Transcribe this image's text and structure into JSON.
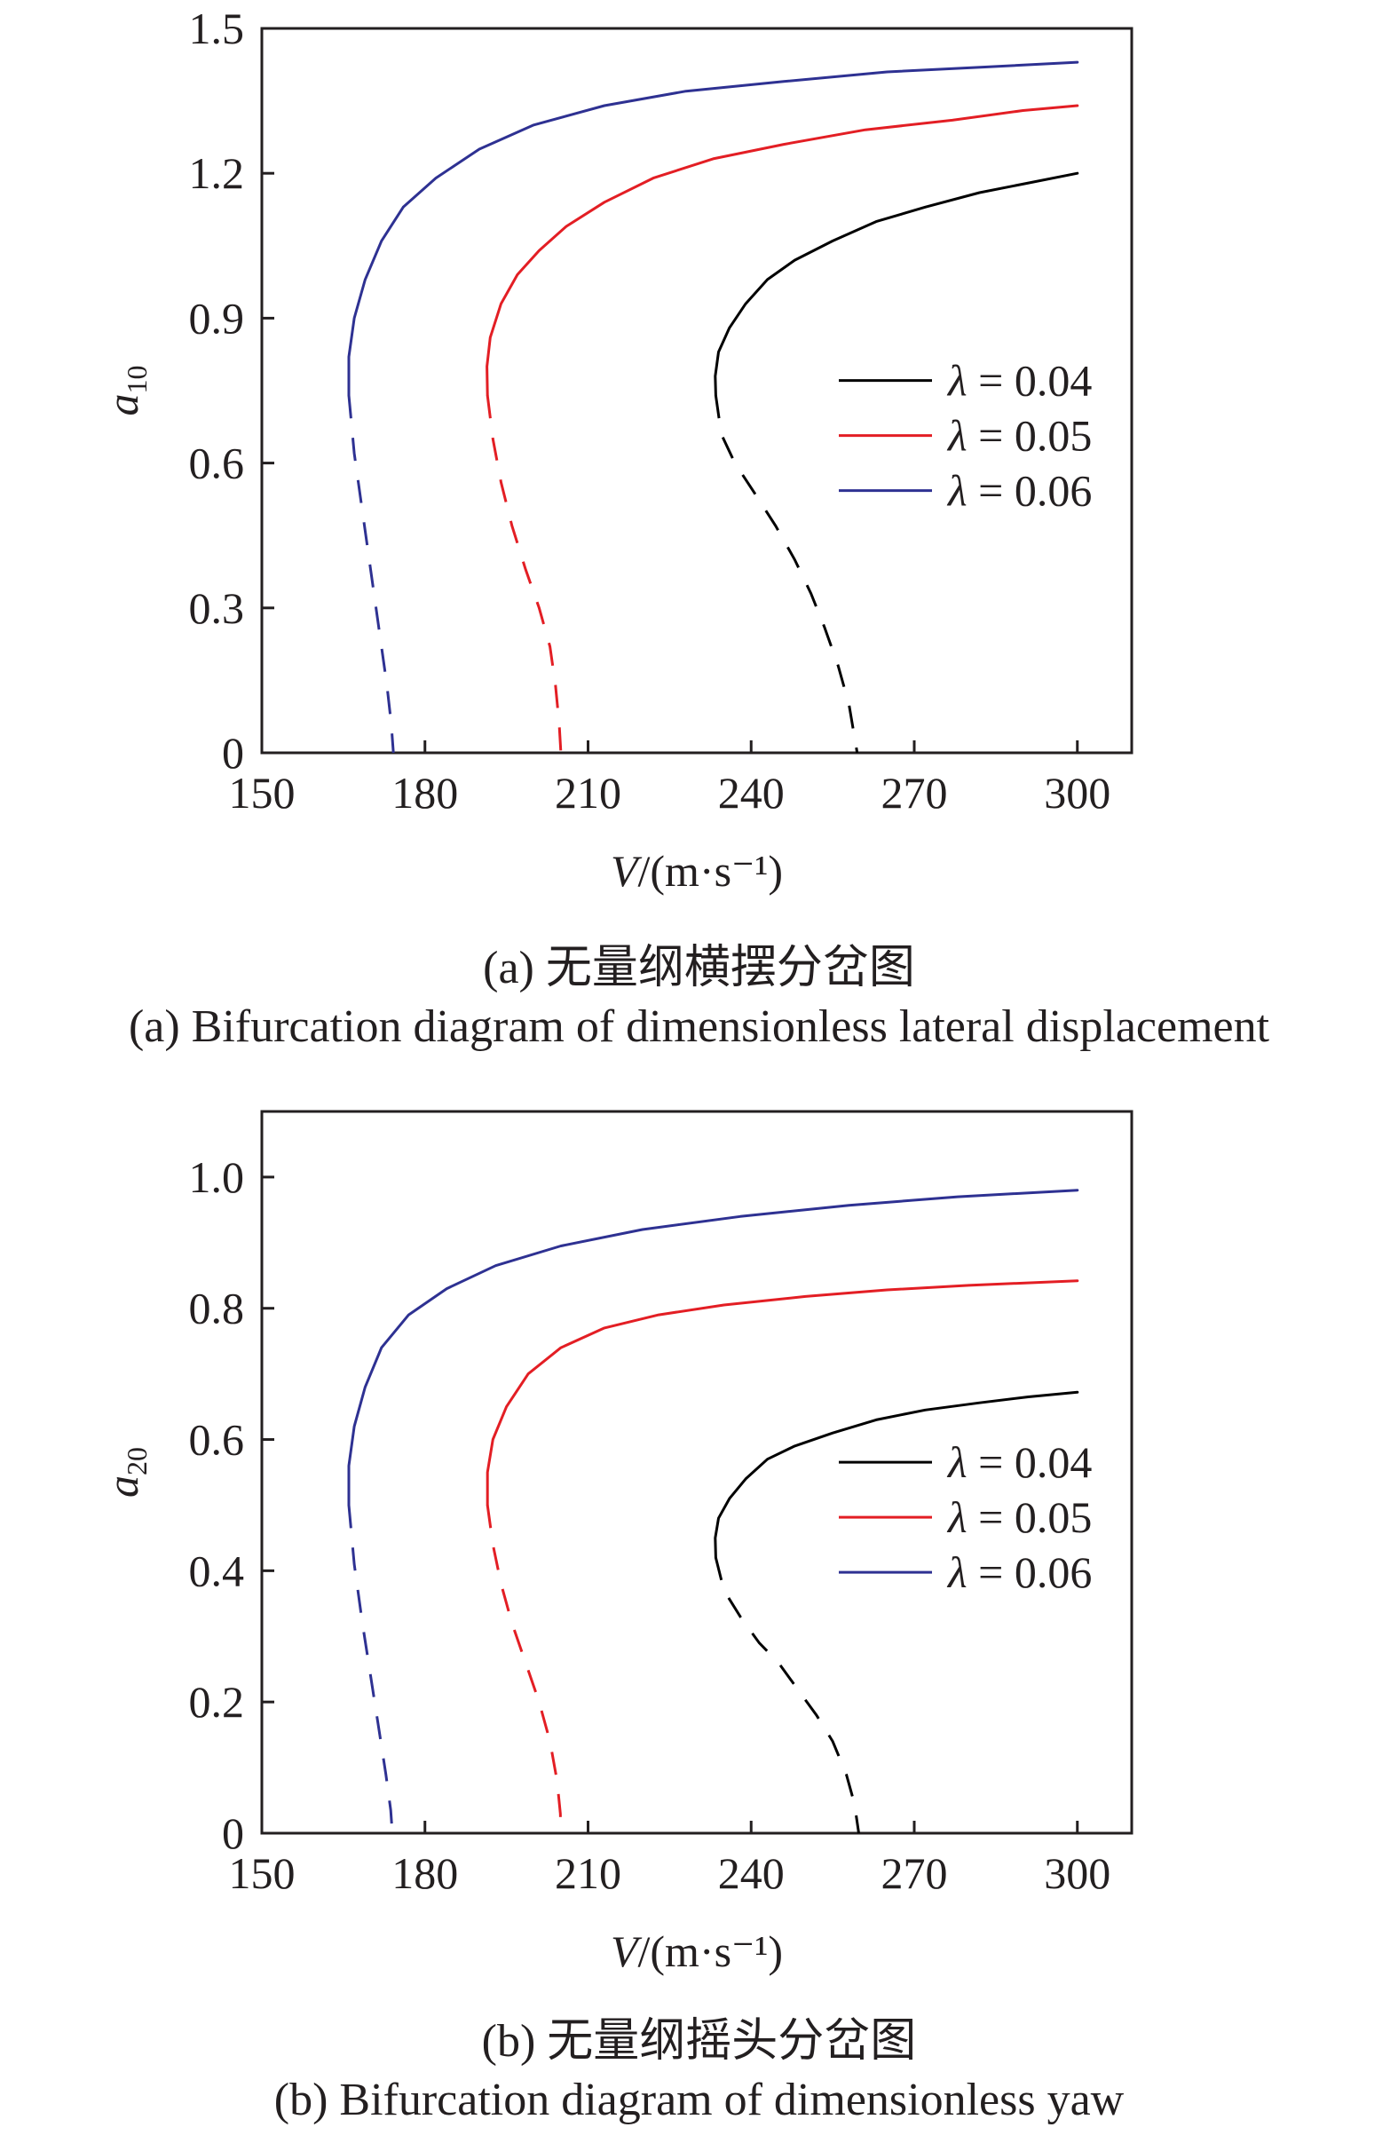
{
  "chart_data": [
    {
      "type": "line",
      "caption_cn": "(a) 无量纲横摆分岔图",
      "caption_en": "(a) Bifurcation diagram of dimensionless lateral displacement",
      "xlabel": "V/(m·s⁻¹)",
      "ylabel": "a10",
      "xlim": [
        150,
        310
      ],
      "ylim": [
        0,
        1.5
      ],
      "xticks": [
        "150",
        "180",
        "210",
        "240",
        "270",
        "300"
      ],
      "yticks": [
        "0",
        "0.3",
        "0.6",
        "0.9",
        "1.2",
        "1.5"
      ],
      "legend": "right-middle",
      "series": [
        {
          "name": "λ = 0.04",
          "color": "#000000",
          "stable": [
            [
              233.5,
              0.74
            ],
            [
              233.4,
              0.78
            ],
            [
              234,
              0.83
            ],
            [
              236,
              0.88
            ],
            [
              239,
              0.93
            ],
            [
              243,
              0.98
            ],
            [
              248,
              1.02
            ],
            [
              255,
              1.06
            ],
            [
              263,
              1.1
            ],
            [
              272,
              1.13
            ],
            [
              282,
              1.16
            ],
            [
              291,
              1.18
            ],
            [
              300,
              1.2
            ]
          ],
          "unstable": [
            [
              233.5,
              0.74
            ],
            [
              234.5,
              0.66
            ],
            [
              237,
              0.6
            ],
            [
              240.5,
              0.54
            ],
            [
              244.5,
              0.47
            ],
            [
              248,
              0.4
            ],
            [
              251,
              0.33
            ],
            [
              253.5,
              0.26
            ],
            [
              256,
              0.18
            ],
            [
              258,
              0.1
            ],
            [
              259.5,
              0
            ]
          ]
        },
        {
          "name": "λ = 0.05",
          "color": "#e31e24",
          "stable": [
            [
              191.5,
              0.74
            ],
            [
              191.4,
              0.8
            ],
            [
              192,
              0.86
            ],
            [
              194,
              0.93
            ],
            [
              197,
              0.99
            ],
            [
              201,
              1.04
            ],
            [
              206,
              1.09
            ],
            [
              213,
              1.14
            ],
            [
              222,
              1.19
            ],
            [
              233,
              1.23
            ],
            [
              246,
              1.26
            ],
            [
              261,
              1.29
            ],
            [
              277,
              1.31
            ],
            [
              290,
              1.33
            ],
            [
              300,
              1.34
            ]
          ],
          "unstable": [
            [
              191.5,
              0.74
            ],
            [
              192.5,
              0.65
            ],
            [
              194,
              0.56
            ],
            [
              196,
              0.47
            ],
            [
              198.5,
              0.38
            ],
            [
              201,
              0.3
            ],
            [
              203,
              0.22
            ],
            [
              204,
              0.14
            ],
            [
              204.7,
              0.06
            ],
            [
              205,
              0
            ]
          ]
        },
        {
          "name": "λ = 0.06",
          "color": "#2e3192",
          "stable": [
            [
              166,
              0.74
            ],
            [
              166,
              0.82
            ],
            [
              167,
              0.9
            ],
            [
              169,
              0.98
            ],
            [
              172,
              1.06
            ],
            [
              176,
              1.13
            ],
            [
              182,
              1.19
            ],
            [
              190,
              1.25
            ],
            [
              200,
              1.3
            ],
            [
              213,
              1.34
            ],
            [
              228,
              1.37
            ],
            [
              246,
              1.39
            ],
            [
              265,
              1.41
            ],
            [
              283,
              1.42
            ],
            [
              300,
              1.43
            ]
          ],
          "unstable": [
            [
              166,
              0.74
            ],
            [
              167,
              0.62
            ],
            [
              168.5,
              0.5
            ],
            [
              170,
              0.38
            ],
            [
              171.5,
              0.26
            ],
            [
              173,
              0.14
            ],
            [
              173.8,
              0.06
            ],
            [
              174.2,
              0
            ]
          ]
        }
      ]
    },
    {
      "type": "line",
      "caption_cn": "(b) 无量纲摇头分岔图",
      "caption_en": "(b) Bifurcation diagram of dimensionless yaw",
      "xlabel": "V/(m·s⁻¹)",
      "ylabel": "a20",
      "xlim": [
        150,
        310
      ],
      "ylim": [
        0,
        1.1
      ],
      "xticks": [
        "150",
        "180",
        "210",
        "240",
        "270",
        "300"
      ],
      "yticks": [
        "0",
        "0.2",
        "0.4",
        "0.6",
        "0.8",
        "1.0"
      ],
      "legend": "right-middle",
      "series": [
        {
          "name": "λ = 0.04",
          "color": "#000000",
          "stable": [
            [
              233.5,
              0.42
            ],
            [
              233.4,
              0.45
            ],
            [
              234,
              0.48
            ],
            [
              236,
              0.51
            ],
            [
              239,
              0.54
            ],
            [
              243,
              0.57
            ],
            [
              248,
              0.59
            ],
            [
              255,
              0.61
            ],
            [
              263,
              0.63
            ],
            [
              272,
              0.645
            ],
            [
              282,
              0.656
            ],
            [
              291,
              0.665
            ],
            [
              300,
              0.672
            ]
          ],
          "unstable": [
            [
              233.5,
              0.42
            ],
            [
              235,
              0.37
            ],
            [
              238,
              0.33
            ],
            [
              241.5,
              0.29
            ],
            [
              245,
              0.26
            ],
            [
              248.5,
              0.22
            ],
            [
              252,
              0.18
            ],
            [
              255,
              0.14
            ],
            [
              257.5,
              0.09
            ],
            [
              259,
              0.045
            ],
            [
              259.8,
              0
            ]
          ]
        },
        {
          "name": "λ = 0.05",
          "color": "#e31e24",
          "stable": [
            [
              191.5,
              0.5
            ],
            [
              191.5,
              0.55
            ],
            [
              192.5,
              0.6
            ],
            [
              195,
              0.65
            ],
            [
              199,
              0.7
            ],
            [
              205,
              0.74
            ],
            [
              213,
              0.77
            ],
            [
              223,
              0.79
            ],
            [
              235,
              0.805
            ],
            [
              250,
              0.818
            ],
            [
              265,
              0.828
            ],
            [
              280,
              0.835
            ],
            [
              300,
              0.842
            ]
          ],
          "unstable": [
            [
              191.5,
              0.5
            ],
            [
              192.5,
              0.44
            ],
            [
              194,
              0.38
            ],
            [
              196,
              0.32
            ],
            [
              198.5,
              0.26
            ],
            [
              201,
              0.2
            ],
            [
              203,
              0.14
            ],
            [
              204.3,
              0.08
            ],
            [
              204.9,
              0.03
            ],
            [
              205,
              0
            ]
          ]
        },
        {
          "name": "λ = 0.06",
          "color": "#2e3192",
          "stable": [
            [
              166,
              0.5
            ],
            [
              166,
              0.56
            ],
            [
              167,
              0.62
            ],
            [
              169,
              0.68
            ],
            [
              172,
              0.74
            ],
            [
              177,
              0.79
            ],
            [
              184,
              0.83
            ],
            [
              193,
              0.865
            ],
            [
              205,
              0.895
            ],
            [
              220,
              0.92
            ],
            [
              238,
              0.94
            ],
            [
              258,
              0.957
            ],
            [
              278,
              0.97
            ],
            [
              300,
              0.98
            ]
          ],
          "unstable": [
            [
              166,
              0.5
            ],
            [
              167,
              0.41
            ],
            [
              168.5,
              0.32
            ],
            [
              170,
              0.24
            ],
            [
              171.5,
              0.16
            ],
            [
              172.8,
              0.09
            ],
            [
              173.7,
              0.035
            ],
            [
              174,
              0
            ]
          ]
        }
      ]
    }
  ]
}
